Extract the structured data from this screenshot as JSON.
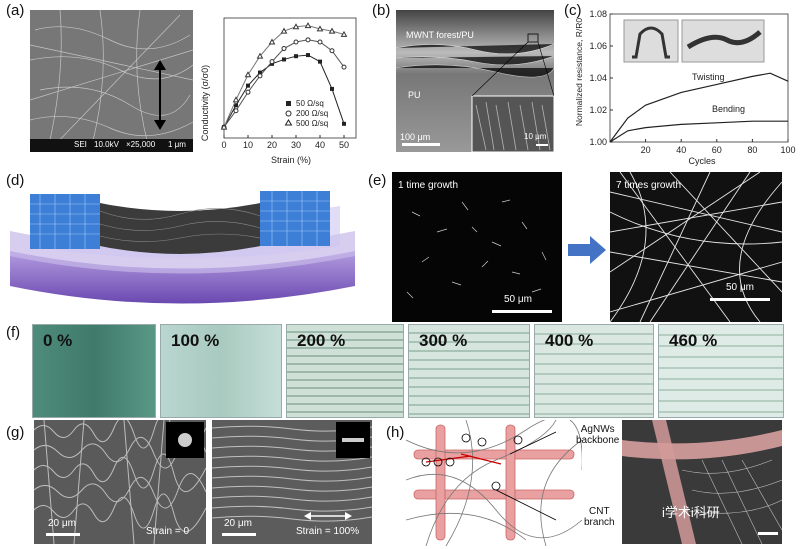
{
  "panels": {
    "a": {
      "label": "(a)",
      "sem_footer": [
        "SEI",
        "10.0kV",
        "×25,000",
        "1 μm"
      ]
    },
    "a_chart": {
      "ylabel": "Conductivity (σ/σ0)",
      "xlabel": "Strain (%)",
      "legend": [
        "50 Ω/sq",
        "200 Ω/sq",
        "500 Ω/sq"
      ]
    },
    "b": {
      "label": "(b)",
      "top_label": "MWNT forest/PU",
      "mid_label": "PU",
      "scale": "100 μm",
      "inset_scale": "10 μm"
    },
    "c": {
      "label": "(c)",
      "ylabel": "Normalized resistance, R/R0",
      "xlabel": "Cycles",
      "twisting": "Twisting",
      "bending": "Bending"
    },
    "d": {
      "label": "(d)"
    },
    "e": {
      "label": "(e)",
      "left_caption": "1 time growth",
      "left_scale": "50 μm",
      "right_caption": "7 times growth",
      "right_scale": "50 μm"
    },
    "f": {
      "label": "(f)",
      "strains": [
        "0 %",
        "100 %",
        "200 %",
        "300 %",
        "400 %",
        "460 %"
      ]
    },
    "g": {
      "label": "(g)",
      "left_scale": "20 μm",
      "left_strain": "Strain = 0",
      "right_scale": "20 μm",
      "right_strain": "Strain = 100%"
    },
    "h": {
      "label": "(h)",
      "backbone": "AgNWs\nbackbone",
      "branch": "CNT\nbranch",
      "watermark": "i学术i科研",
      "charge": "e"
    }
  },
  "chart_data": [
    {
      "type": "line",
      "xlabel": "Strain (%)",
      "ylabel": "Conductivity (σ/σ0)",
      "x": [
        0,
        5,
        10,
        15,
        20,
        25,
        30,
        35,
        40,
        45,
        50
      ],
      "xticks": [
        0,
        10,
        20,
        30,
        40,
        50
      ],
      "series": [
        {
          "name": "50 Ω/sq",
          "values": [
            1.0,
            1.2,
            1.38,
            1.5,
            1.58,
            1.62,
            1.65,
            1.66,
            1.6,
            1.35,
            1.03
          ]
        },
        {
          "name": "200 Ω/sq",
          "values": [
            1.0,
            1.15,
            1.32,
            1.47,
            1.6,
            1.72,
            1.78,
            1.8,
            1.78,
            1.7,
            1.55
          ]
        },
        {
          "name": "500 Ω/sq",
          "values": [
            1.0,
            1.25,
            1.48,
            1.65,
            1.78,
            1.88,
            1.92,
            1.93,
            1.9,
            1.88,
            1.85
          ]
        }
      ]
    },
    {
      "type": "line",
      "xlabel": "Cycles",
      "ylabel": "Normalized resistance, R/R0",
      "x": [
        0,
        10,
        20,
        40,
        60,
        80,
        90,
        100
      ],
      "xticks": [
        20,
        40,
        60,
        80,
        100
      ],
      "yticks": [
        1.0,
        1.02,
        1.04,
        1.06,
        1.08
      ],
      "ylim": [
        1.0,
        1.08
      ],
      "series": [
        {
          "name": "Twisting",
          "values": [
            1.0,
            1.015,
            1.023,
            1.031,
            1.036,
            1.041,
            1.043,
            1.038
          ]
        },
        {
          "name": "Bending",
          "values": [
            1.0,
            1.007,
            1.009,
            1.011,
            1.012,
            1.013,
            1.013,
            1.013
          ]
        }
      ]
    }
  ]
}
